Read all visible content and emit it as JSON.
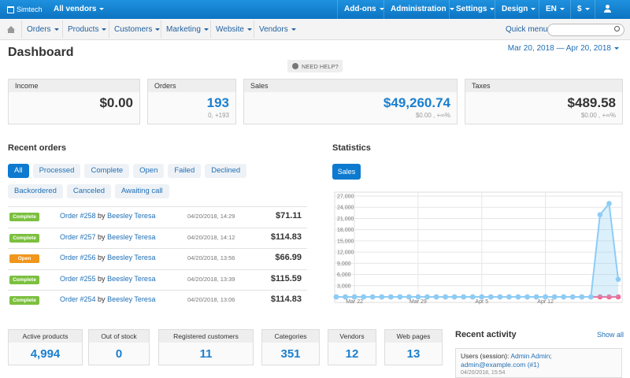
{
  "top_bar": {
    "brand": "Simtech",
    "vendor_selector": "All vendors",
    "menu": [
      "Add-ons",
      "Administration",
      "Settings",
      "Design",
      "EN",
      "$"
    ]
  },
  "nav_bar": {
    "menu": [
      "Orders",
      "Products",
      "Customers",
      "Marketing",
      "Website",
      "Vendors"
    ],
    "quick_menu": "Quick menu"
  },
  "header": {
    "title": "Dashboard",
    "date_range": "Mar 20, 2018 — Apr 20, 2018",
    "help": "NEED HELP?"
  },
  "summary_cards": [
    {
      "title": "Income",
      "value": "$0.00",
      "color": "#333333"
    },
    {
      "title": "Orders",
      "value": "193",
      "change": "0, +193",
      "color": "#1a7fcf"
    },
    {
      "title": "Sales",
      "value": "$49,260.74",
      "change": "$0.00 , +∞%",
      "color": "#1a7fcf"
    },
    {
      "title": "Taxes",
      "value": "$489.58",
      "change": "$0.00 , +∞%",
      "color": "#333333"
    }
  ],
  "recent_orders": {
    "title": "Recent orders",
    "filters": [
      "All",
      "Processed",
      "Complete",
      "Open",
      "Failed",
      "Declined",
      "Backordered",
      "Canceled",
      "Awaiting call"
    ],
    "orders": [
      {
        "status": "Complete",
        "color": "#7cc03f",
        "order": "Order #258",
        "by": "by",
        "customer": "Beesley Teresa",
        "date": "04/20/2018, 14:29",
        "total": "$71.11"
      },
      {
        "status": "Complete",
        "color": "#7cc03f",
        "order": "Order #257",
        "by": "by",
        "customer": "Beesley Teresa",
        "date": "04/20/2018, 14:12",
        "total": "$114.83"
      },
      {
        "status": "Open",
        "color": "#f0961c",
        "order": "Order #256",
        "by": "by",
        "customer": "Beesley Teresa",
        "date": "04/20/2018, 13:56",
        "total": "$66.99"
      },
      {
        "status": "Complete",
        "color": "#7cc03f",
        "order": "Order #255",
        "by": "by",
        "customer": "Beesley Teresa",
        "date": "04/20/2018, 13:39",
        "total": "$115.59"
      },
      {
        "status": "Complete",
        "color": "#7cc03f",
        "order": "Order #254",
        "by": "by",
        "customer": "Beesley Teresa",
        "date": "04/20/2018, 13:06",
        "total": "$114.83"
      }
    ]
  },
  "statistics": {
    "title": "Statistics",
    "tab": "Sales"
  },
  "chart_data": {
    "type": "line",
    "categories": [
      null,
      null,
      "Mar 22",
      null,
      null,
      null,
      null,
      null,
      null,
      "Mar 29",
      null,
      null,
      null,
      null,
      null,
      null,
      "Apr 5",
      null,
      null,
      null,
      null,
      null,
      null,
      "Apr 12",
      null,
      null,
      null,
      null,
      null,
      null,
      null,
      null
    ],
    "series": [
      {
        "color": "#f06a93",
        "values": [
          0,
          0,
          0,
          0,
          0,
          0,
          0,
          0,
          0,
          0,
          0,
          0,
          0,
          0,
          0,
          0,
          0,
          0,
          0,
          0,
          0,
          0,
          0,
          0,
          0,
          0,
          0,
          0,
          0,
          0,
          0,
          0
        ]
      },
      {
        "color": "#8ccdf5",
        "values": [
          0,
          0,
          0,
          0,
          0,
          0,
          0,
          0,
          0,
          0,
          0,
          0,
          0,
          0,
          0,
          0,
          0,
          0,
          0,
          0,
          0,
          0,
          0,
          0,
          0,
          0,
          0,
          0,
          0,
          22000,
          25000,
          4700
        ],
        "area": true
      }
    ],
    "ylim": [
      0,
      27000
    ],
    "yticks": [
      {
        "value": 3000,
        "label": "3,000"
      },
      {
        "value": 6000,
        "label": "6,000"
      },
      {
        "value": 9000,
        "label": "9,000"
      },
      {
        "value": 12000,
        "label": "12,000"
      },
      {
        "value": 15000,
        "label": "15,000"
      },
      {
        "value": 18000,
        "label": "18,000"
      },
      {
        "value": 21000,
        "label": "21,000"
      },
      {
        "value": 24000,
        "label": "24,000"
      },
      {
        "value": 27000,
        "label": "27,000"
      }
    ],
    "grid": true
  },
  "counters": [
    {
      "title": "Active products",
      "value": "4,994"
    },
    {
      "title": "Out of stock",
      "value": "0"
    },
    {
      "title": "Registered customers",
      "value": "11"
    },
    {
      "title": "Categories",
      "value": "351"
    },
    {
      "title": "Vendors",
      "value": "12"
    },
    {
      "title": "Web pages",
      "value": "13"
    }
  ],
  "recent_activity": {
    "title": "Recent activity",
    "show_all": "Show all",
    "entries": [
      {
        "label": "Users (session):",
        "link": "Admin Admin; admin@example.com (#1)",
        "date": "04/20/2018, 15:54"
      }
    ]
  }
}
